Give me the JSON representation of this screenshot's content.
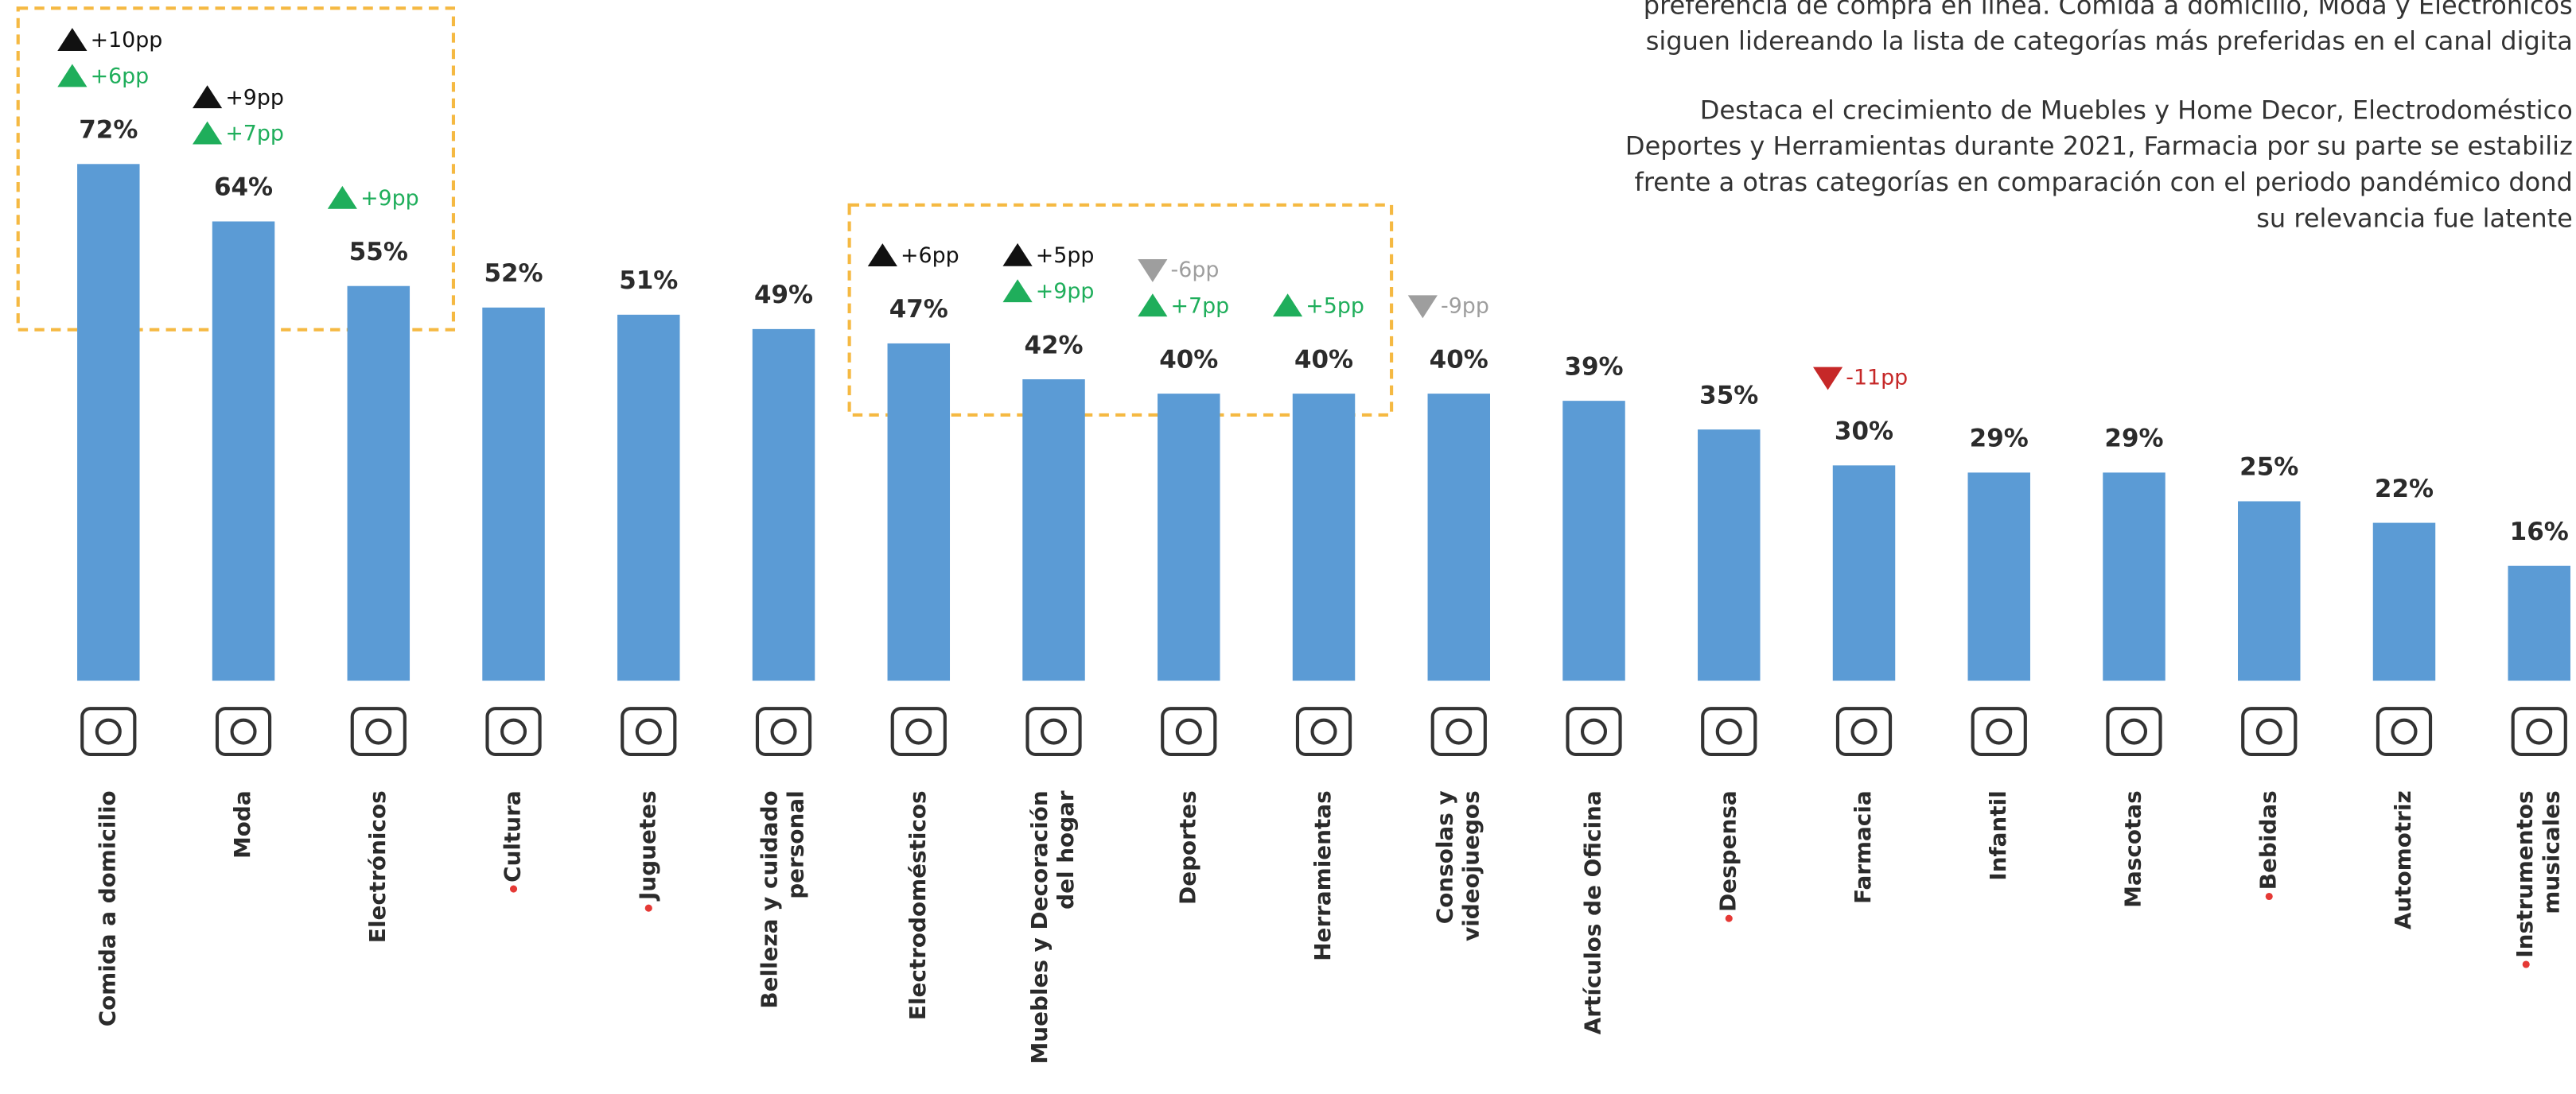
{
  "chart_data": {
    "type": "bar",
    "categories": [
      "Comida a domicilio",
      "Moda",
      "Electrónicos",
      "Cultura",
      "Juguetes",
      "Belleza y cuidado personal",
      "Electrodomésticos",
      "Muebles y Decoración del hogar",
      "Deportes",
      "Herramientas",
      "Consolas y videojuegos",
      "Artículos de Oficina",
      "Despensa",
      "Farmacia",
      "Infantil",
      "Mascotas",
      "Bebidas",
      "Automotriz",
      "Instrumentos musicales"
    ],
    "values": [
      72,
      64,
      55,
      52,
      51,
      49,
      47,
      42,
      40,
      40,
      40,
      39,
      35,
      30,
      29,
      29,
      25,
      22,
      16
    ],
    "value_labels": [
      "72%",
      "64%",
      "55%",
      "52%",
      "51%",
      "49%",
      "47%",
      "42%",
      "40%",
      "40%",
      "40%",
      "39%",
      "35%",
      "30%",
      "29%",
      "29%",
      "25%",
      "22%",
      "16%"
    ],
    "color": "#5b9bd5",
    "marked_categories": [
      3,
      4,
      12,
      16,
      18
    ],
    "marker_color": "#e53935",
    "annotations": [
      {
        "category_index": 0,
        "text": "+10pp",
        "direction": "up",
        "color": "#111111"
      },
      {
        "category_index": 0,
        "text": "+6pp",
        "direction": "up",
        "color": "#1fae5b"
      },
      {
        "category_index": 1,
        "text": "+9pp",
        "direction": "up",
        "color": "#111111"
      },
      {
        "category_index": 1,
        "text": "+7pp",
        "direction": "up",
        "color": "#1fae5b"
      },
      {
        "category_index": 2,
        "text": "+9pp",
        "direction": "up",
        "color": "#1fae5b"
      },
      {
        "category_index": 6,
        "text": "+6pp",
        "direction": "up",
        "color": "#111111"
      },
      {
        "category_index": 7,
        "text": "+5pp",
        "direction": "up",
        "color": "#111111"
      },
      {
        "category_index": 7,
        "text": "+9pp",
        "direction": "up",
        "color": "#1fae5b"
      },
      {
        "category_index": 8,
        "text": "-6pp",
        "direction": "down",
        "color": "#9e9e9e"
      },
      {
        "category_index": 8,
        "text": "+7pp",
        "direction": "up",
        "color": "#1fae5b"
      },
      {
        "category_index": 9,
        "text": "+5pp",
        "direction": "up",
        "color": "#1fae5b"
      },
      {
        "category_index": 10,
        "text": "-9pp",
        "direction": "down",
        "color": "#9e9e9e"
      },
      {
        "category_index": 13,
        "text": "-11pp",
        "direction": "down",
        "color": "#c62828"
      }
    ]
  },
  "paragraph": [
    "preferencia de compra en línea. Comida a domicilio, Moda y Electrónicos",
    "siguen lidereando la lista de categorías más preferidas en el canal digita",
    "Destaca el crecimiento de Muebles y Home Decor, Electrodoméstico",
    "Deportes y Herramientas durante 2021, Farmacia por su parte se estabiliz",
    "frente a otras categorías en comparación con el periodo pandémico dond",
    "su relevancia fue latente"
  ]
}
